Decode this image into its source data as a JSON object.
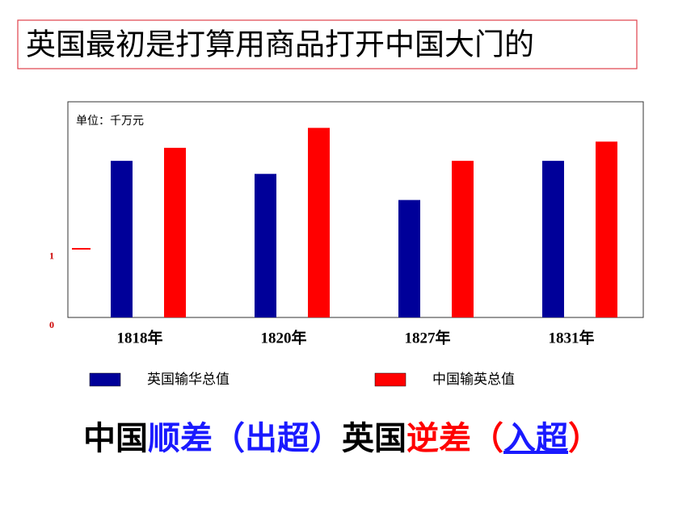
{
  "header": {
    "title": "英国最初是打算用商品打开中国大门的"
  },
  "chart_data": {
    "type": "bar",
    "unit_label": "单位：千万元",
    "categories": [
      "1818年",
      "1820年",
      "1827年",
      "1831年"
    ],
    "series": [
      {
        "name": "英国输华总值",
        "color": "#000099",
        "values": [
          2.28,
          2.09,
          1.71,
          2.28
        ]
      },
      {
        "name": "中国输英总值",
        "color": "#ff0000",
        "values": [
          2.47,
          2.76,
          2.28,
          2.56
        ]
      }
    ],
    "ylim": [
      0,
      3.14
    ],
    "yticks": [
      0,
      1
    ]
  },
  "footer": {
    "segments": [
      {
        "text": "中国",
        "color": "#000000"
      },
      {
        "text": "顺差（出超）",
        "color": "#1a1aff"
      },
      {
        "text": "英国",
        "color": "#000000"
      },
      {
        "text": "逆差（",
        "color": "#ff0000"
      },
      {
        "text": "入超",
        "color": "#1a1aff",
        "underline": true
      },
      {
        "text": "）",
        "color": "#ff0000"
      }
    ]
  }
}
